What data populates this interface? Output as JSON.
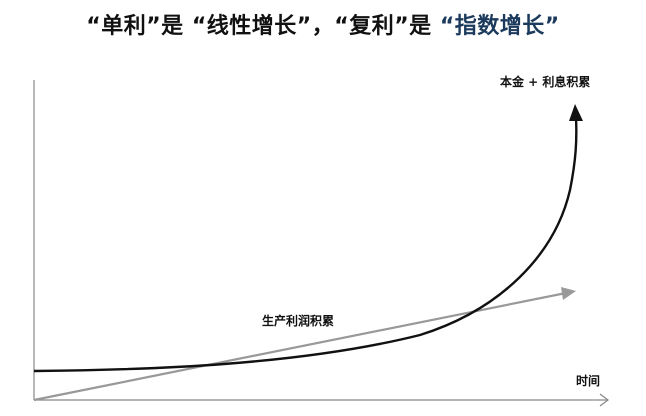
{
  "title": {
    "part1": "“单利”是 ",
    "part2": "“线性增长”",
    "part3": "，“复利”是 ",
    "part4": "“指数增长”"
  },
  "labels": {
    "y_axis_end": "本金 + 利息积累",
    "x_axis": "时间",
    "linear_line": "生产利润积累"
  },
  "colors": {
    "title_highlight": "#1b3a5c",
    "exponential_curve": "#111111",
    "linear_line": "#999999",
    "axes": "#888888"
  }
}
